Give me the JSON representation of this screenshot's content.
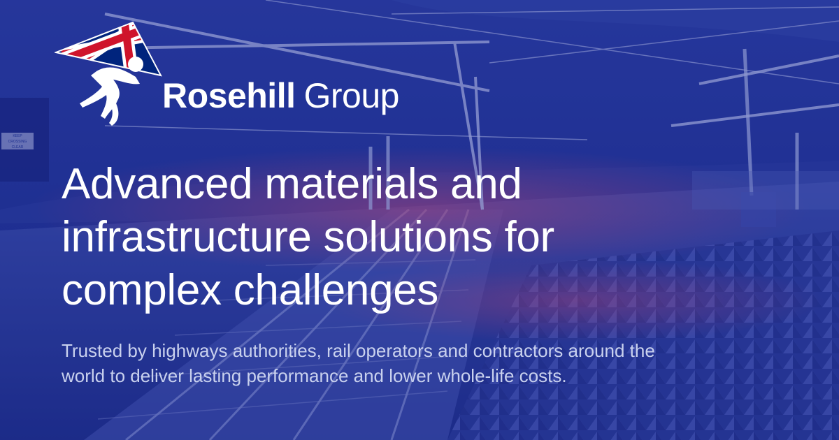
{
  "logo": {
    "brand_bold": "Rosehill",
    "brand_light": "Group",
    "icon": "union-jack-kite-runner-icon"
  },
  "hero": {
    "headline_lines": [
      "Advanced materials and",
      "infrastructure solutions for",
      "complex challenges"
    ],
    "subtitle_lines": [
      "Trusted by highways authorities, rail operators and contractors around the",
      "world to deliver lasting performance and lower whole-life costs."
    ]
  },
  "background": {
    "scene": "rail-level-crossing-photo",
    "sign_text_lines": [
      "KEEP",
      "CROSSING",
      "CLEAR"
    ]
  },
  "colors": {
    "overlay_blue": "#1e2f8f",
    "overlay_deep": "#14206e",
    "light_streak_pink": "#e0486e",
    "flag_red": "#cf142b",
    "flag_blue": "#00247d",
    "text_white": "#ffffff",
    "subtitle_text": "#c9d1ee"
  }
}
